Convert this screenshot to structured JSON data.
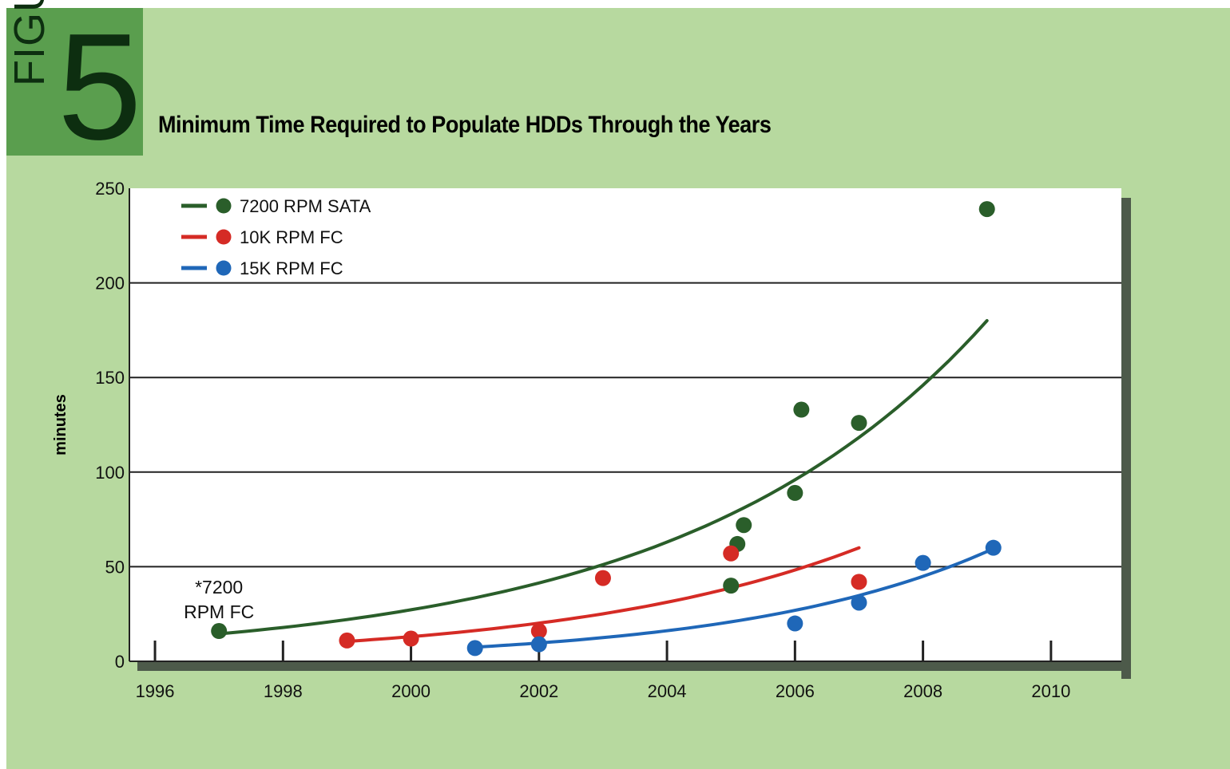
{
  "figure": {
    "word": "FIGURE",
    "number": "5"
  },
  "chart_data": {
    "type": "scatter",
    "title": "Minimum Time Required to Populate HDDs Through the Years",
    "xlabel": "",
    "ylabel": "minutes",
    "xlim": [
      1995.6,
      2011.1
    ],
    "ylim": [
      0,
      250
    ],
    "x_ticks": [
      1996,
      1998,
      2000,
      2002,
      2004,
      2006,
      2008,
      2010
    ],
    "y_ticks": [
      0,
      50,
      100,
      150,
      200,
      250
    ],
    "grid": "horizontal",
    "legend_position": "top-left",
    "annotation": {
      "lines": [
        "*7200",
        "RPM FC"
      ],
      "x": 1997,
      "y": 16
    },
    "series": [
      {
        "name": "7200 RPM SATA",
        "color": "#2a5e2a",
        "points": [
          [
            1997,
            16
          ],
          [
            2005,
            40
          ],
          [
            2005.1,
            62
          ],
          [
            2005.2,
            72
          ],
          [
            2006,
            89
          ],
          [
            2006.1,
            133
          ],
          [
            2007,
            126
          ],
          [
            2009,
            239
          ]
        ],
        "trend": {
          "from": 1997,
          "to": 2009,
          "start": 14.5,
          "end": 180
        }
      },
      {
        "name": "10K RPM FC",
        "color": "#d52b25",
        "points": [
          [
            1999,
            11
          ],
          [
            2000,
            12
          ],
          [
            2002,
            16
          ],
          [
            2003,
            44
          ],
          [
            2005,
            57
          ],
          [
            2007,
            42
          ]
        ],
        "trend": {
          "from": 1999,
          "to": 2007,
          "start": 10.5,
          "end": 60
        }
      },
      {
        "name": "15K RPM FC",
        "color": "#1f67b8",
        "points": [
          [
            2001,
            7
          ],
          [
            2002,
            9
          ],
          [
            2006,
            20
          ],
          [
            2007,
            31
          ],
          [
            2008,
            52
          ],
          [
            2009.1,
            60
          ]
        ],
        "trend": {
          "from": 2001,
          "to": 2009,
          "start": 7.5,
          "end": 58
        }
      }
    ]
  }
}
